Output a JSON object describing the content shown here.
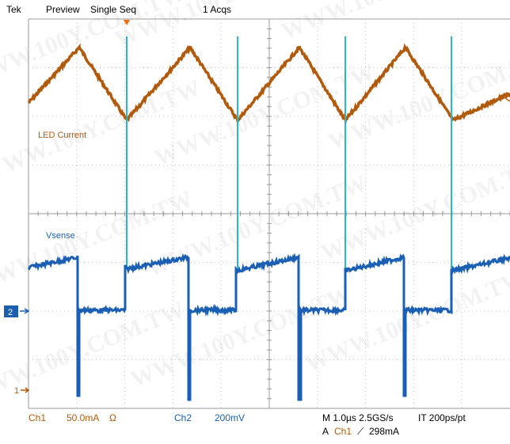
{
  "header": {
    "brand": "Tek",
    "mode": "Preview",
    "acq_mode": "Single Seq",
    "acq_count": "1 Acqs"
  },
  "traces": {
    "ch1": {
      "label": "LED Current",
      "color": "#b25a0c"
    },
    "ch2": {
      "label": "Vsense",
      "color": "#1a5fb4"
    }
  },
  "markers": {
    "ch2": "2",
    "ch1": "1"
  },
  "footer": {
    "ch1_name": "Ch1",
    "ch1_scale": "50.0mA",
    "ch1_coupling": "Ω",
    "ch2_name": "Ch2",
    "ch2_scale": "200mV",
    "timebase": "M 1.0µs 2.5GS/s",
    "interp": "IT 200ps/pt",
    "trigger_prefix": "A",
    "trigger_source": "Ch1",
    "trigger_slope": "⟋",
    "trigger_level": "298mA"
  },
  "watermark": "WWW.100Y.COM.TW"
}
